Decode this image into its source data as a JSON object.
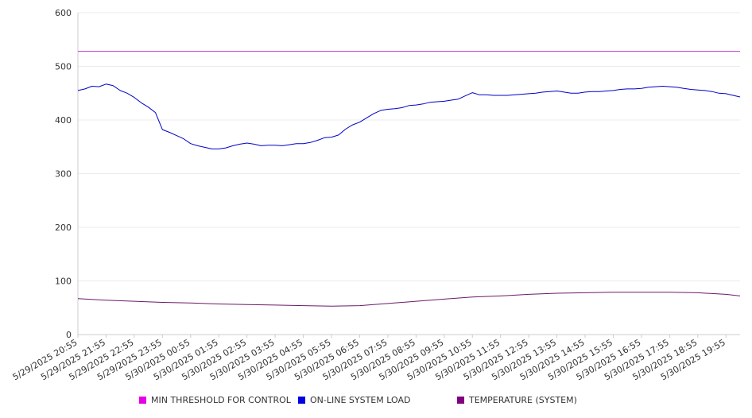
{
  "chart_data": {
    "type": "line",
    "ylim": [
      0,
      600
    ],
    "yticks": [
      0,
      100,
      200,
      300,
      400,
      500,
      600
    ],
    "xlim": [
      "5/29/2025 20:55",
      "5/30/2025 20:25"
    ],
    "xticks": [
      "5/29/2025 20:55",
      "5/29/2025 21:55",
      "5/29/2025 22:55",
      "5/29/2025 23:55",
      "5/30/2025 00:55",
      "5/30/2025 01:55",
      "5/30/2025 02:55",
      "5/30/2025 03:55",
      "5/30/2025 04:55",
      "5/30/2025 05:55",
      "5/30/2025 06:55",
      "5/30/2025 07:55",
      "5/30/2025 08:55",
      "5/30/2025 09:55",
      "5/30/2025 10:55",
      "5/30/2025 11:55",
      "5/30/2025 12:55",
      "5/30/2025 13:55",
      "5/30/2025 14:55",
      "5/30/2025 15:55",
      "5/30/2025 16:55",
      "5/30/2025 17:55",
      "5/30/2025 18:55",
      "5/30/2025 19:55"
    ],
    "grid": true,
    "legend_position": "bottom",
    "series": [
      {
        "name": "MIN THRESHOLD FOR CONTROL",
        "color": "#e600e6",
        "line_color": "#c03ad0",
        "points": [
          [
            "5/29/2025 20:55",
            528
          ],
          [
            "5/30/2025 20:25",
            528
          ]
        ]
      },
      {
        "name": "ON-LINE SYSTEM LOAD",
        "color": "#0000e0",
        "line_color": "#0000c8",
        "points": [
          [
            "5/29/2025 20:55",
            455
          ],
          [
            "5/29/2025 21:10",
            458
          ],
          [
            "5/29/2025 21:25",
            463
          ],
          [
            "5/29/2025 21:40",
            462
          ],
          [
            "5/29/2025 21:55",
            467
          ],
          [
            "5/29/2025 22:10",
            464
          ],
          [
            "5/29/2025 22:25",
            455
          ],
          [
            "5/29/2025 22:40",
            450
          ],
          [
            "5/29/2025 22:55",
            442
          ],
          [
            "5/29/2025 23:10",
            432
          ],
          [
            "5/29/2025 23:25",
            424
          ],
          [
            "5/29/2025 23:40",
            414
          ],
          [
            "5/29/2025 23:55",
            382
          ],
          [
            "5/30/2025 00:10",
            377
          ],
          [
            "5/30/2025 00:25",
            371
          ],
          [
            "5/30/2025 00:40",
            365
          ],
          [
            "5/30/2025 00:55",
            356
          ],
          [
            "5/30/2025 01:10",
            352
          ],
          [
            "5/30/2025 01:25",
            349
          ],
          [
            "5/30/2025 01:40",
            346
          ],
          [
            "5/30/2025 01:55",
            346
          ],
          [
            "5/30/2025 02:10",
            348
          ],
          [
            "5/30/2025 02:25",
            352
          ],
          [
            "5/30/2025 02:40",
            355
          ],
          [
            "5/30/2025 02:55",
            357
          ],
          [
            "5/30/2025 03:10",
            355
          ],
          [
            "5/30/2025 03:25",
            352
          ],
          [
            "5/30/2025 03:40",
            353
          ],
          [
            "5/30/2025 03:55",
            353
          ],
          [
            "5/30/2025 04:10",
            352
          ],
          [
            "5/30/2025 04:25",
            354
          ],
          [
            "5/30/2025 04:40",
            356
          ],
          [
            "5/30/2025 04:55",
            356
          ],
          [
            "5/30/2025 05:10",
            358
          ],
          [
            "5/30/2025 05:25",
            362
          ],
          [
            "5/30/2025 05:40",
            367
          ],
          [
            "5/30/2025 05:55",
            368
          ],
          [
            "5/30/2025 06:10",
            372
          ],
          [
            "5/30/2025 06:25",
            383
          ],
          [
            "5/30/2025 06:40",
            391
          ],
          [
            "5/30/2025 06:55",
            396
          ],
          [
            "5/30/2025 07:10",
            404
          ],
          [
            "5/30/2025 07:25",
            412
          ],
          [
            "5/30/2025 07:40",
            418
          ],
          [
            "5/30/2025 07:55",
            420
          ],
          [
            "5/30/2025 08:10",
            421
          ],
          [
            "5/30/2025 08:25",
            423
          ],
          [
            "5/30/2025 08:40",
            427
          ],
          [
            "5/30/2025 08:55",
            428
          ],
          [
            "5/30/2025 09:10",
            430
          ],
          [
            "5/30/2025 09:25",
            433
          ],
          [
            "5/30/2025 09:40",
            434
          ],
          [
            "5/30/2025 09:55",
            435
          ],
          [
            "5/30/2025 10:10",
            437
          ],
          [
            "5/30/2025 10:25",
            439
          ],
          [
            "5/30/2025 10:40",
            445
          ],
          [
            "5/30/2025 10:55",
            451
          ],
          [
            "5/30/2025 11:10",
            447
          ],
          [
            "5/30/2025 11:25",
            447
          ],
          [
            "5/30/2025 11:40",
            446
          ],
          [
            "5/30/2025 11:55",
            446
          ],
          [
            "5/30/2025 12:10",
            446
          ],
          [
            "5/30/2025 12:25",
            447
          ],
          [
            "5/30/2025 12:40",
            448
          ],
          [
            "5/30/2025 12:55",
            449
          ],
          [
            "5/30/2025 13:10",
            450
          ],
          [
            "5/30/2025 13:25",
            452
          ],
          [
            "5/30/2025 13:40",
            453
          ],
          [
            "5/30/2025 13:55",
            454
          ],
          [
            "5/30/2025 14:10",
            452
          ],
          [
            "5/30/2025 14:25",
            450
          ],
          [
            "5/30/2025 14:40",
            450
          ],
          [
            "5/30/2025 14:55",
            452
          ],
          [
            "5/30/2025 15:10",
            453
          ],
          [
            "5/30/2025 15:25",
            453
          ],
          [
            "5/30/2025 15:40",
            454
          ],
          [
            "5/30/2025 15:55",
            455
          ],
          [
            "5/30/2025 16:10",
            457
          ],
          [
            "5/30/2025 16:25",
            458
          ],
          [
            "5/30/2025 16:40",
            458
          ],
          [
            "5/30/2025 16:55",
            459
          ],
          [
            "5/30/2025 17:10",
            461
          ],
          [
            "5/30/2025 17:25",
            462
          ],
          [
            "5/30/2025 17:40",
            463
          ],
          [
            "5/30/2025 17:55",
            462
          ],
          [
            "5/30/2025 18:10",
            461
          ],
          [
            "5/30/2025 18:25",
            459
          ],
          [
            "5/30/2025 18:40",
            457
          ],
          [
            "5/30/2025 18:55",
            456
          ],
          [
            "5/30/2025 19:10",
            455
          ],
          [
            "5/30/2025 19:25",
            453
          ],
          [
            "5/30/2025 19:40",
            450
          ],
          [
            "5/30/2025 19:55",
            449
          ],
          [
            "5/30/2025 20:10",
            446
          ],
          [
            "5/30/2025 20:25",
            443
          ]
        ]
      },
      {
        "name": "TEMPERATURE (SYSTEM)",
        "color": "#800080",
        "line_color": "#6a1a6a",
        "points": [
          [
            "5/29/2025 20:55",
            67
          ],
          [
            "5/29/2025 21:55",
            64
          ],
          [
            "5/29/2025 22:55",
            62
          ],
          [
            "5/29/2025 23:55",
            60
          ],
          [
            "5/30/2025 00:55",
            59
          ],
          [
            "5/30/2025 01:55",
            57
          ],
          [
            "5/30/2025 02:55",
            56
          ],
          [
            "5/30/2025 03:55",
            55
          ],
          [
            "5/30/2025 04:55",
            54
          ],
          [
            "5/30/2025 05:55",
            53
          ],
          [
            "5/30/2025 06:55",
            54
          ],
          [
            "5/30/2025 07:55",
            58
          ],
          [
            "5/30/2025 08:55",
            62
          ],
          [
            "5/30/2025 09:55",
            66
          ],
          [
            "5/30/2025 10:55",
            70
          ],
          [
            "5/30/2025 11:55",
            72
          ],
          [
            "5/30/2025 12:55",
            75
          ],
          [
            "5/30/2025 13:55",
            77
          ],
          [
            "5/30/2025 14:55",
            78
          ],
          [
            "5/30/2025 15:55",
            79
          ],
          [
            "5/30/2025 16:55",
            79
          ],
          [
            "5/30/2025 17:55",
            79
          ],
          [
            "5/30/2025 18:55",
            78
          ],
          [
            "5/30/2025 19:55",
            75
          ],
          [
            "5/30/2025 20:25",
            72
          ]
        ]
      }
    ]
  }
}
